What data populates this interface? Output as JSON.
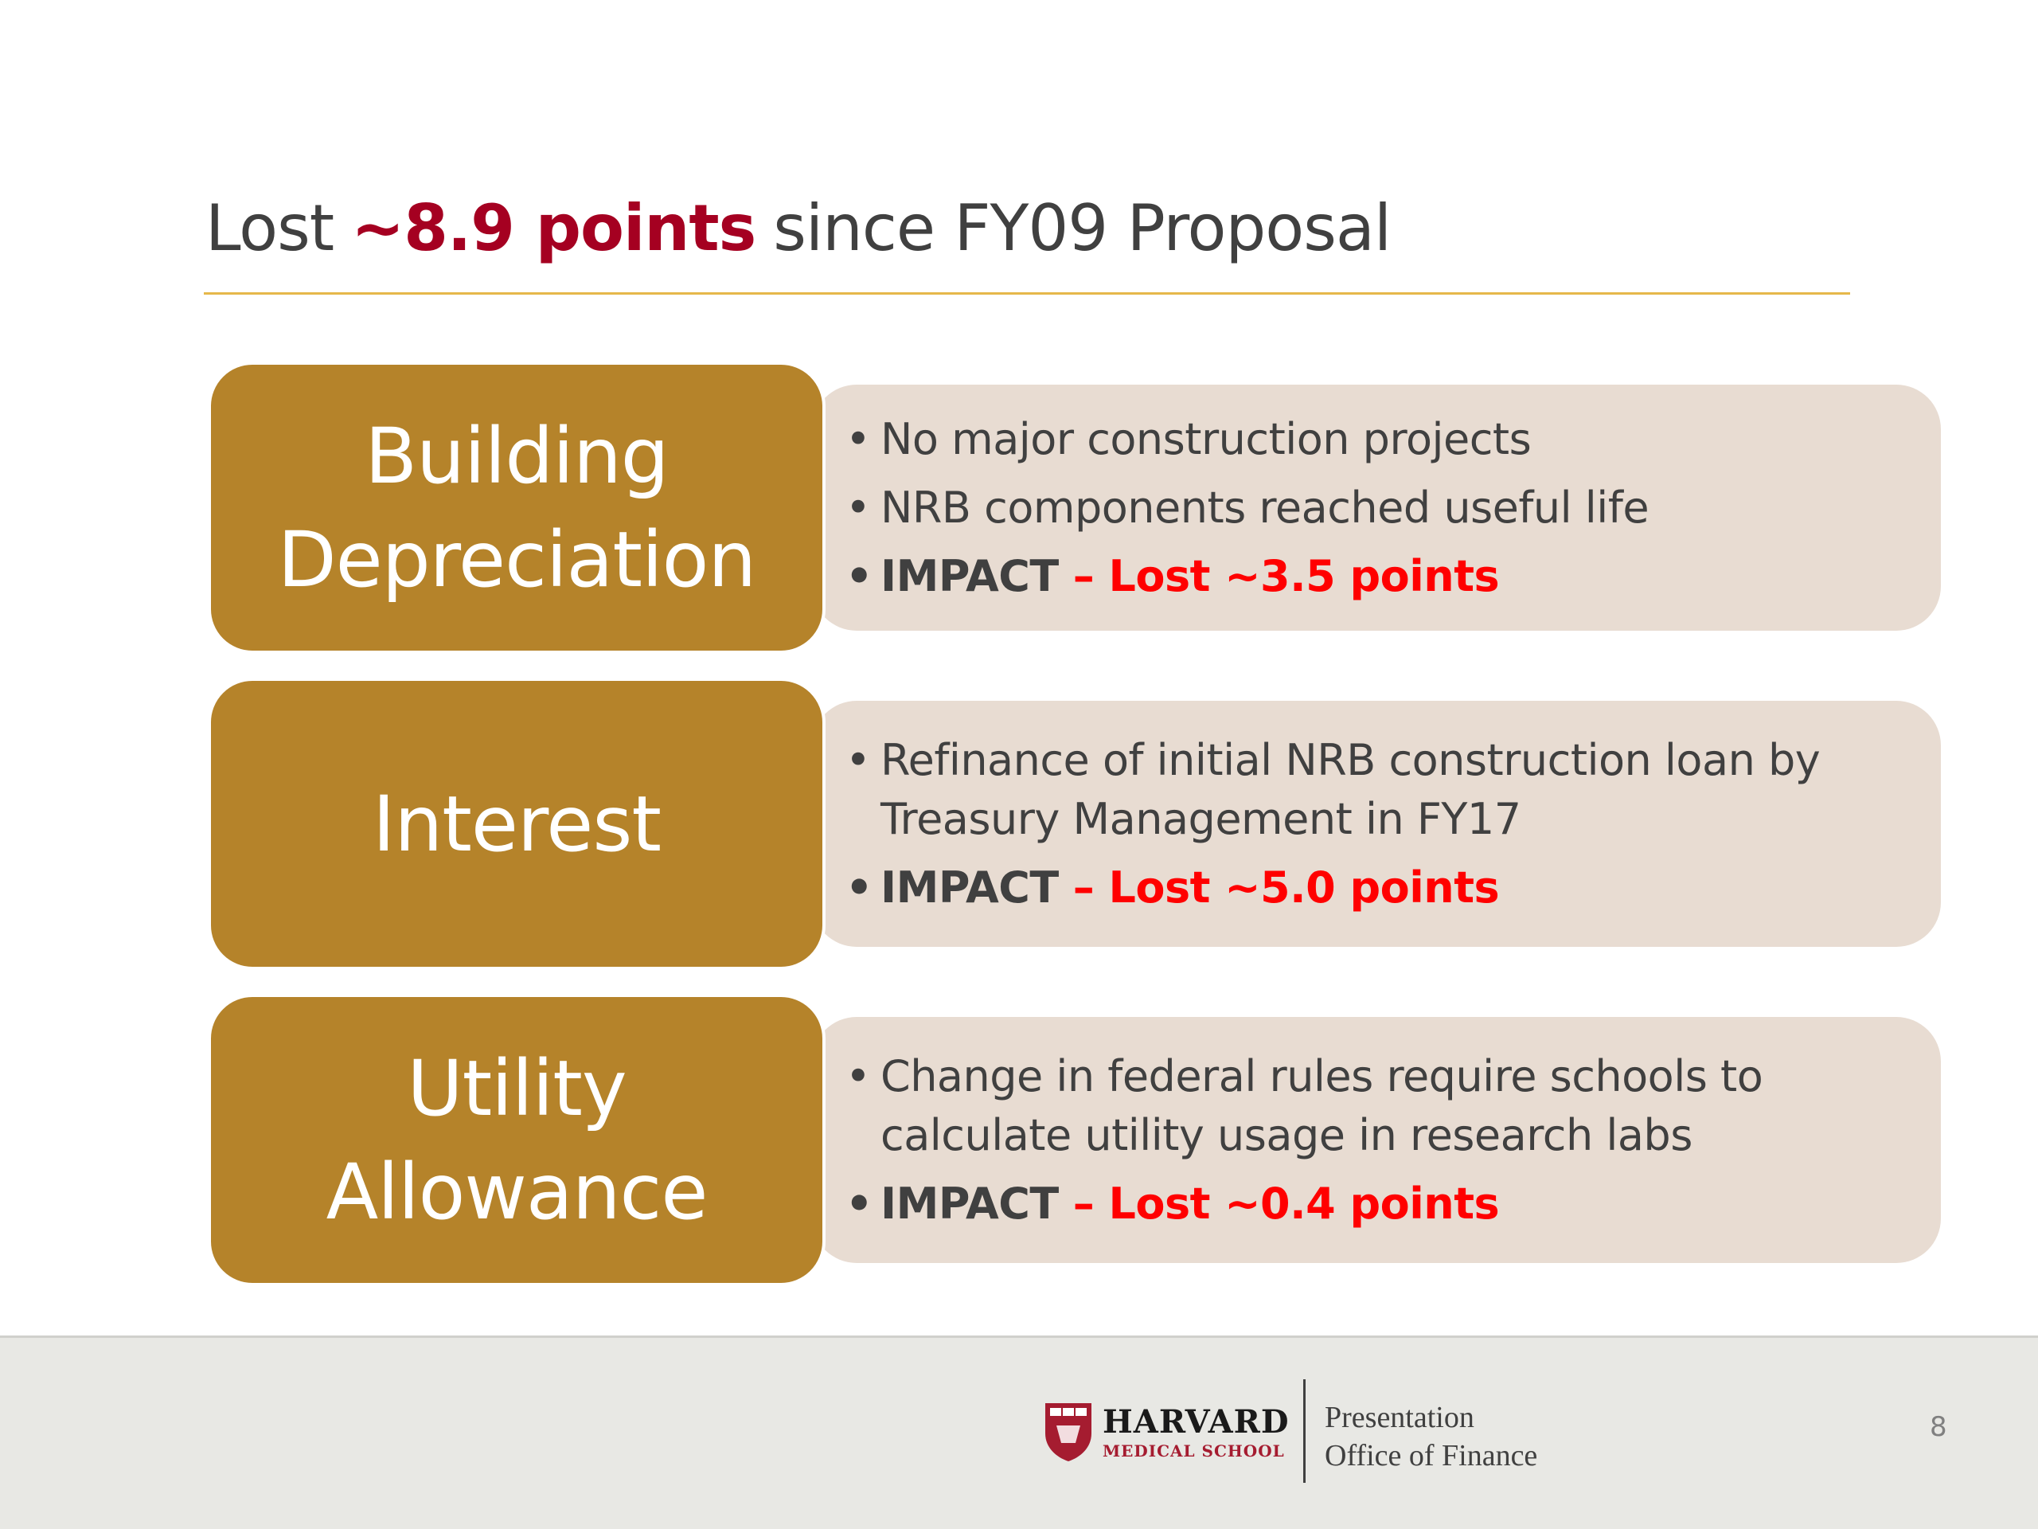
{
  "header": {
    "title_prefix": "Lost",
    "title_highlight": "~8.9 points",
    "title_suffix": "since FY09 Proposal"
  },
  "sections": [
    {
      "label": "Building Depreciation",
      "bullets": [
        "No major construction projects",
        "NRB components reached useful life"
      ],
      "impact_label": "IMPACT",
      "impact_text": "– Lost ~3.5 points"
    },
    {
      "label": "Interest",
      "bullets": [
        "Refinance of initial NRB construction loan by Treasury Management in FY17"
      ],
      "impact_label": "IMPACT",
      "impact_text": "– Lost ~5.0 points"
    },
    {
      "label": "Utility Allowance",
      "bullets": [
        "Change in federal rules require schools to calculate utility usage in research labs"
      ],
      "impact_label": "IMPACT",
      "impact_text": "– Lost ~0.4 points"
    }
  ],
  "footer": {
    "logo_name": "HARVARD",
    "logo_sub": "MEDICAL SCHOOL",
    "line1": "Presentation",
    "line2": "Office of Finance",
    "page_number": "8"
  }
}
